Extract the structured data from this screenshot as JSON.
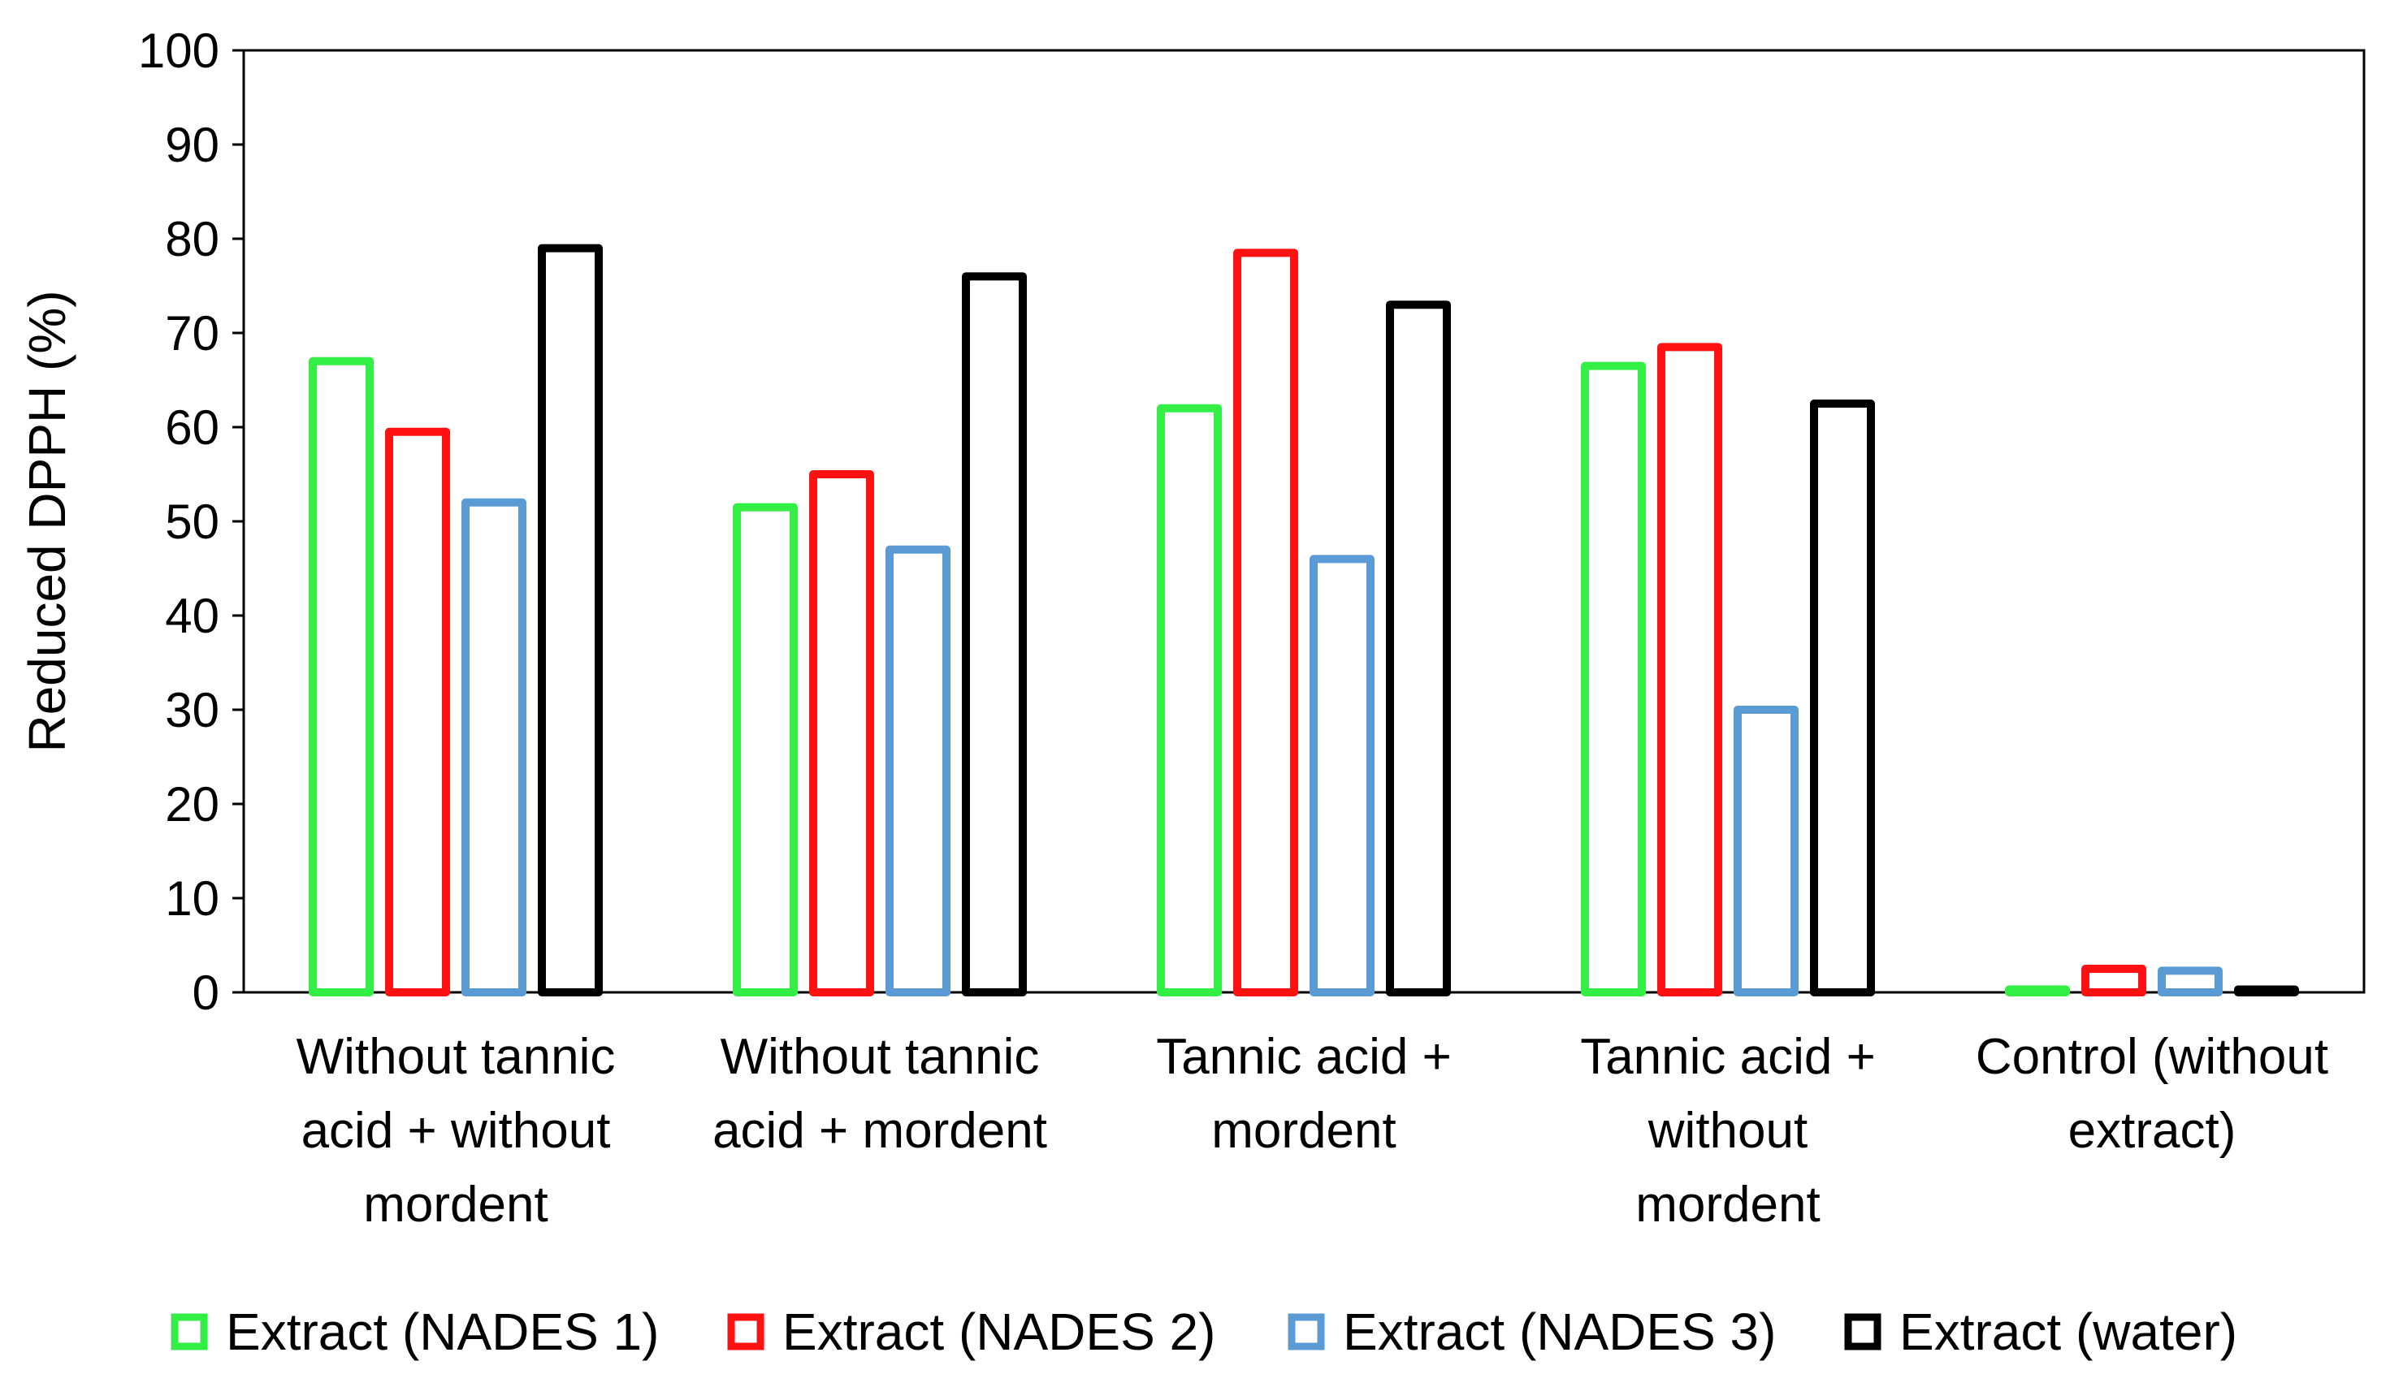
{
  "chart_data": {
    "type": "bar",
    "title": "",
    "xlabel": "",
    "ylabel": "Reduced DPPH (%)",
    "ylim": [
      0,
      100
    ],
    "yticks": [
      0,
      10,
      20,
      30,
      40,
      50,
      60,
      70,
      80,
      90,
      100
    ],
    "grid": false,
    "legend_position": "bottom",
    "bar_style": "outlined",
    "categories": [
      [
        "Without tannic",
        "acid + without",
        "mordent"
      ],
      [
        "Without tannic",
        "acid + mordent"
      ],
      [
        "Tannic acid +",
        "mordent"
      ],
      [
        "Tannic acid +",
        "without",
        "mordent"
      ],
      [
        "Control (without",
        "extract)"
      ]
    ],
    "series": [
      {
        "name": "Extract (NADES 1)",
        "color": "#33ee44",
        "values": [
          67,
          51.5,
          62,
          66.5,
          0.3
        ]
      },
      {
        "name": "Extract (NADES 2)",
        "color": "#ff1111",
        "values": [
          59.5,
          55,
          78.5,
          68.5,
          2.5
        ]
      },
      {
        "name": "Extract (NADES 3)",
        "color": "#5b9bd5",
        "values": [
          52,
          47,
          46,
          30,
          2.3
        ]
      },
      {
        "name": "Extract (water)",
        "color": "#000000",
        "values": [
          79,
          76,
          73,
          62.5,
          0.3
        ]
      }
    ]
  }
}
